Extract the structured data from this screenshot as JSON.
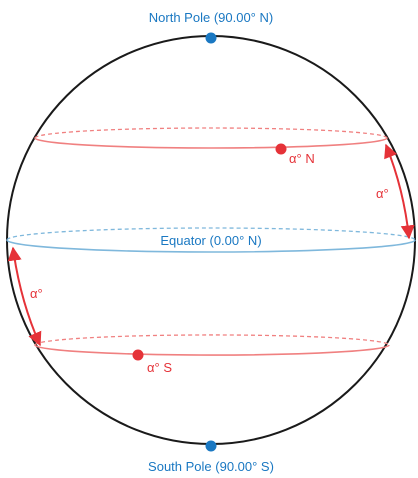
{
  "labels": {
    "north_pole": "North Pole (90.00° N)",
    "south_pole": "South Pole (90.00° S)",
    "equator": "Equator (0.00° N)",
    "north_latitude": "α° N",
    "south_latitude": "α° S",
    "angle_right": "α°",
    "angle_left": "α°"
  },
  "colors": {
    "blue": "#1a78c2",
    "red": "#e53238",
    "pink_line": "#f08080",
    "equator_line": "#7fb8dc",
    "sphere_outline": "#1a1a1a"
  }
}
